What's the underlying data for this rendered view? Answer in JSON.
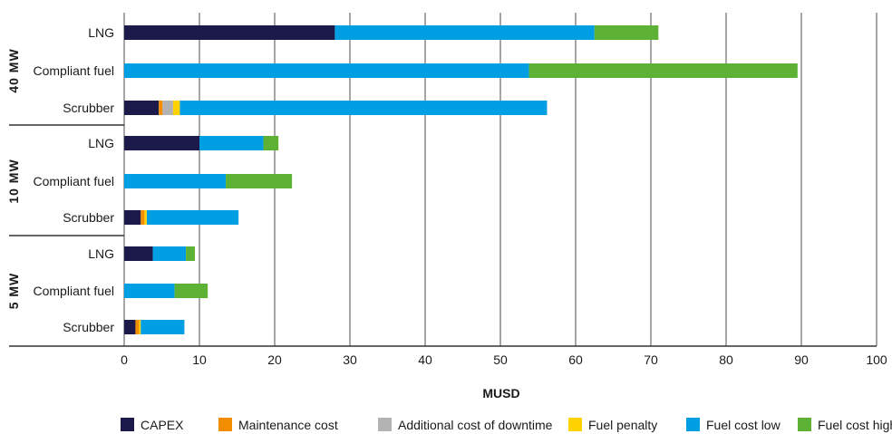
{
  "chart_data": {
    "type": "bar",
    "orientation": "horizontal",
    "stacked": true,
    "title": "",
    "xlabel": "MUSD",
    "ylabel": "",
    "xlim": [
      0,
      100
    ],
    "xticks": [
      "0",
      "10",
      "20",
      "30",
      "40",
      "50",
      "60",
      "70",
      "80",
      "90",
      "100"
    ],
    "grid": true,
    "legend_position": "bottom",
    "groups": [
      {
        "name": "40 MW",
        "categories": [
          "LNG",
          "Compliant fuel",
          "Scrubber"
        ]
      },
      {
        "name": "10 MW",
        "categories": [
          "LNG",
          "Compliant fuel",
          "Scrubber"
        ]
      },
      {
        "name": "5 MW",
        "categories": [
          "LNG",
          "Compliant fuel",
          "Scrubber"
        ]
      }
    ],
    "categories": [
      "LNG",
      "Compliant fuel",
      "Scrubber",
      "LNG",
      "Compliant fuel",
      "Scrubber",
      "LNG",
      "Compliant fuel",
      "Scrubber"
    ],
    "series": [
      {
        "name": "CAPEX",
        "color": "#1b1a4b",
        "values": [
          28,
          0,
          4.6,
          10,
          0,
          2.2,
          3.8,
          0,
          1.5
        ]
      },
      {
        "name": "Maintenance cost",
        "color": "#f28c00",
        "values": [
          0,
          0,
          0.5,
          0,
          0,
          0.5,
          0,
          0,
          0.5
        ]
      },
      {
        "name": "Additional cost of downtime",
        "color": "#b3b3b3",
        "values": [
          0,
          0,
          1.4,
          0,
          0,
          0,
          0,
          0,
          0
        ]
      },
      {
        "name": "Fuel penalty",
        "color": "#ffd200",
        "values": [
          0,
          0,
          0.9,
          0,
          0,
          0.3,
          0,
          0,
          0.2
        ]
      },
      {
        "name": "Fuel cost low",
        "color": "#009fe3",
        "values": [
          34.5,
          53.8,
          48.8,
          8.5,
          13.5,
          12.2,
          4.4,
          6.7,
          5.8
        ]
      },
      {
        "name": "Fuel cost high",
        "color": "#5db235",
        "values": [
          8.5,
          35.7,
          0,
          2,
          8.8,
          0,
          1.2,
          4.4,
          0
        ]
      }
    ]
  }
}
